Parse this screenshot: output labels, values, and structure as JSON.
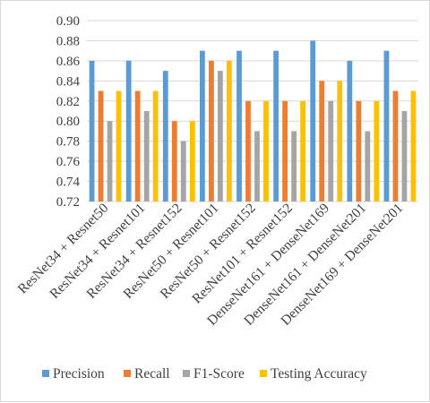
{
  "chart_data": {
    "type": "bar",
    "title": "",
    "xlabel": "",
    "ylabel": "",
    "ylim": [
      0.72,
      0.9
    ],
    "yticks": [
      0.72,
      0.74,
      0.76,
      0.78,
      0.8,
      0.82,
      0.84,
      0.86,
      0.88,
      0.9
    ],
    "ytick_labels": [
      "0.72",
      "0.74",
      "0.76",
      "0.78",
      "0.80",
      "0.82",
      "0.84",
      "0.86",
      "0.88",
      "0.90"
    ],
    "grid": "horizontal",
    "legend_position": "bottom",
    "categories": [
      "ResNet34 + Resnet50",
      "ResNet34 + Resnet101",
      "ResNet34 + Resnet152",
      "ResNet50 + Resnet101",
      "ResNet50 + Resnet152",
      "ResNet101 + Resnet152",
      "DenseNet161 + DenseNet169",
      "DenseNet161 + DenseNet201",
      "DenseNet169 + DenseNet201"
    ],
    "series": [
      {
        "name": "Precision",
        "color": "#5b9bd5",
        "values": [
          0.86,
          0.86,
          0.85,
          0.87,
          0.87,
          0.87,
          0.88,
          0.86,
          0.87
        ]
      },
      {
        "name": "Recall",
        "color": "#ed7d31",
        "values": [
          0.83,
          0.83,
          0.8,
          0.86,
          0.82,
          0.82,
          0.84,
          0.82,
          0.83
        ]
      },
      {
        "name": "F1-Score",
        "color": "#a5a5a5",
        "values": [
          0.8,
          0.81,
          0.78,
          0.85,
          0.79,
          0.79,
          0.82,
          0.79,
          0.81
        ]
      },
      {
        "name": "Testing Accuracy",
        "color": "#ffc000",
        "values": [
          0.83,
          0.83,
          0.8,
          0.86,
          0.82,
          0.82,
          0.84,
          0.82,
          0.83
        ]
      }
    ]
  }
}
